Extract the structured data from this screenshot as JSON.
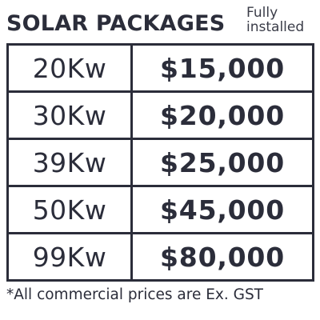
{
  "header": {
    "title": "SOLAR PACKAGES",
    "subtitle_line1": "Fully",
    "subtitle_line2": "installed"
  },
  "packages": [
    {
      "size": "20Kw",
      "price": "$15,000"
    },
    {
      "size": "30Kw",
      "price": "$20,000"
    },
    {
      "size": "39Kw",
      "price": "$25,000"
    },
    {
      "size": "50Kw",
      "price": "$45,000"
    },
    {
      "size": "99Kw",
      "price": "$80,000"
    }
  ],
  "footnote": "*All commercial prices are Ex. GST",
  "colors": {
    "text": "#2b2d3a",
    "background": "#ffffff",
    "border": "#2b2d3a"
  }
}
